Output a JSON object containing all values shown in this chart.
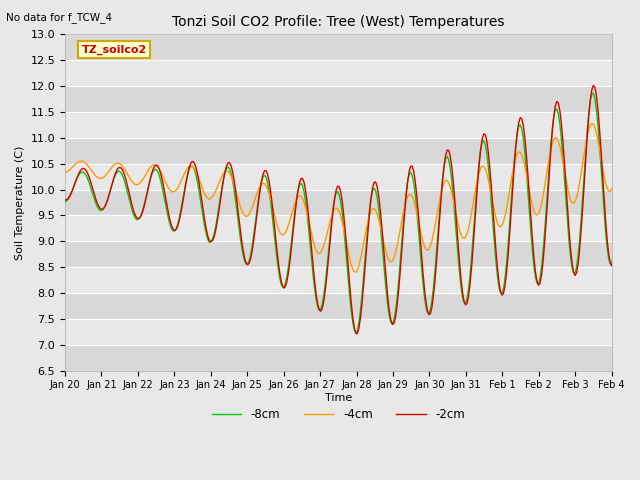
{
  "title": "Tonzi Soil CO2 Profile: Tree (West) Temperatures",
  "top_left_note": "No data for f_TCW_4",
  "legend_box_label": "TZ_soilco2",
  "xlabel": "Time",
  "ylabel": "Soil Temperature (C)",
  "ylim": [
    6.5,
    13.0
  ],
  "yticks": [
    6.5,
    7.0,
    7.5,
    8.0,
    8.5,
    9.0,
    9.5,
    10.0,
    10.5,
    11.0,
    11.5,
    12.0,
    12.5,
    13.0
  ],
  "xtick_labels": [
    "Jan 20",
    "Jan 21",
    "Jan 22",
    "Jan 23",
    "Jan 24",
    "Jan 25",
    "Jan 26",
    "Jan 27",
    "Jan 28",
    "Jan 29",
    "Jan 30",
    "Jan 31",
    "Feb 1",
    "Feb 2",
    "Feb 3",
    "Feb 4"
  ],
  "line_colors": {
    "minus2cm": "#dd0000",
    "minus4cm": "#ff9900",
    "minus8cm": "#00cc00"
  },
  "line_labels": [
    "-2cm",
    "-4cm",
    "-8cm"
  ],
  "bg_color": "#e8e8e8",
  "grid_color": "#ffffff",
  "legend_bg": "#ffffcc",
  "legend_border": "#ccaa00"
}
